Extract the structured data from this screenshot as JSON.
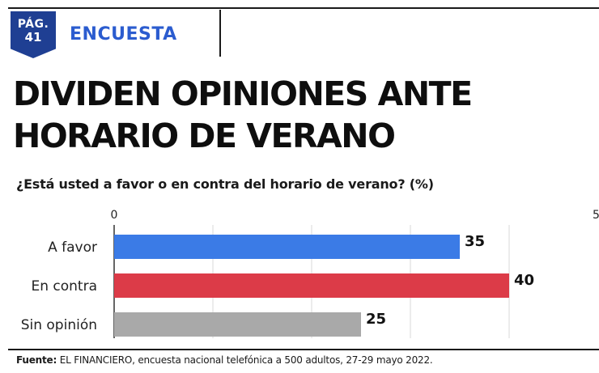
{
  "header": {
    "page_label": "PÁG.",
    "page_number": "41",
    "section": "ENCUESTA"
  },
  "headline": {
    "line1": "DIVIDEN OPINIONES ANTE",
    "line2": "HORARIO DE VERANO"
  },
  "chart_data": {
    "type": "bar",
    "orientation": "horizontal",
    "title": "¿Está usted a favor o en contra del horario de verano? (%)",
    "categories": [
      "A favor",
      "En contra",
      "Sin opinión"
    ],
    "values": [
      35,
      40,
      25
    ],
    "colors": [
      "#3b7be6",
      "#dc3b48",
      "#a9a9a9"
    ],
    "xlim": [
      0,
      50
    ],
    "x_ticks": [
      "0",
      "5"
    ],
    "grid": true
  },
  "footer": {
    "source_label": "Fuente:",
    "source_text": " EL FINANCIERO, encuesta nacional telefónica a 500 adultos, 27-29 mayo 2022."
  }
}
